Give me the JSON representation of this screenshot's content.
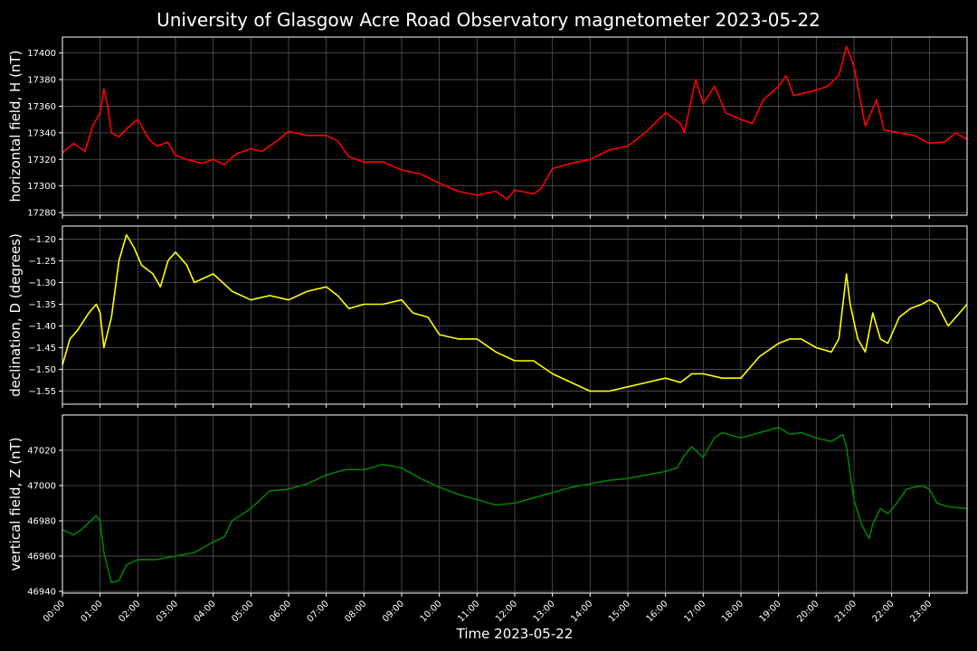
{
  "title": "University of Glasgow Acre Road Observatory magnetometer 2023-05-22",
  "xlabel": "Time 2023-05-22",
  "x_ticks": [
    "00:00",
    "01:00",
    "02:00",
    "03:00",
    "04:00",
    "05:00",
    "06:00",
    "07:00",
    "08:00",
    "09:00",
    "10:00",
    "11:00",
    "12:00",
    "13:00",
    "14:00",
    "15:00",
    "16:00",
    "17:00",
    "18:00",
    "19:00",
    "20:00",
    "21:00",
    "22:00",
    "23:00"
  ],
  "colors": {
    "background": "#000000",
    "grid": "#555555",
    "text": "#ffffff"
  },
  "chart_data": [
    {
      "type": "line",
      "ylabel": "horizontal field, H (nT)",
      "color": "#ff0000",
      "x_range_hours": [
        0,
        24
      ],
      "ylim": [
        17278,
        17412
      ],
      "y_ticks": [
        17280,
        17300,
        17320,
        17340,
        17360,
        17380,
        17400
      ],
      "y_tick_labels": [
        "17280",
        "17300",
        "17320",
        "17340",
        "17360",
        "17380",
        "17400"
      ],
      "grid": true,
      "x_hours": [
        0.0,
        0.3,
        0.6,
        0.8,
        1.0,
        1.1,
        1.2,
        1.3,
        1.5,
        1.7,
        2.0,
        2.3,
        2.5,
        2.8,
        3.0,
        3.3,
        3.7,
        4.0,
        4.3,
        4.6,
        5.0,
        5.3,
        5.7,
        6.0,
        6.5,
        7.0,
        7.3,
        7.6,
        8.0,
        8.5,
        9.0,
        9.5,
        10.0,
        10.5,
        11.0,
        11.5,
        11.8,
        12.0,
        12.5,
        12.7,
        13.0,
        13.5,
        14.0,
        14.5,
        15.0,
        15.5,
        16.0,
        16.4,
        16.5,
        16.8,
        17.0,
        17.3,
        17.6,
        18.0,
        18.3,
        18.6,
        19.0,
        19.2,
        19.4,
        19.7,
        20.0,
        20.3,
        20.6,
        20.8,
        21.0,
        21.3,
        21.6,
        21.8,
        22.2,
        22.6,
        23.0,
        23.4,
        23.7,
        24.0
      ],
      "values": [
        17325,
        17332,
        17326,
        17345,
        17355,
        17373,
        17360,
        17340,
        17337,
        17343,
        17350,
        17335,
        17330,
        17333,
        17323,
        17320,
        17317,
        17320,
        17316,
        17324,
        17328,
        17326,
        17334,
        17341,
        17338,
        17338,
        17334,
        17322,
        17318,
        17318,
        17312,
        17309,
        17302,
        17296,
        17293,
        17296,
        17290,
        17297,
        17294,
        17298,
        17313,
        17317,
        17320,
        17327,
        17330,
        17341,
        17355,
        17347,
        17340,
        17380,
        17362,
        17375,
        17355,
        17350,
        17347,
        17365,
        17375,
        17383,
        17368,
        17370,
        17372,
        17375,
        17383,
        17405,
        17390,
        17345,
        17365,
        17342,
        17340,
        17338,
        17332,
        17333,
        17340,
        17335
      ]
    },
    {
      "type": "line",
      "ylabel": "declination, D (degrees)",
      "color": "#ffff00",
      "x_range_hours": [
        0,
        24
      ],
      "ylim": [
        -1.58,
        -1.17
      ],
      "y_ticks": [
        -1.55,
        -1.5,
        -1.45,
        -1.4,
        -1.35,
        -1.3,
        -1.25,
        -1.2
      ],
      "y_tick_labels": [
        "−1.55",
        "−1.50",
        "−1.45",
        "−1.40",
        "−1.35",
        "−1.30",
        "−1.25",
        "−1.20"
      ],
      "grid": true,
      "x_hours": [
        0.0,
        0.2,
        0.4,
        0.7,
        0.9,
        1.0,
        1.1,
        1.3,
        1.5,
        1.7,
        1.9,
        2.1,
        2.4,
        2.6,
        2.8,
        3.0,
        3.3,
        3.5,
        4.0,
        4.5,
        5.0,
        5.5,
        6.0,
        6.5,
        7.0,
        7.3,
        7.6,
        8.0,
        8.5,
        9.0,
        9.3,
        9.7,
        10.0,
        10.5,
        11.0,
        11.5,
        12.0,
        12.5,
        13.0,
        13.5,
        14.0,
        14.5,
        15.0,
        15.5,
        16.0,
        16.4,
        16.7,
        17.0,
        17.5,
        18.0,
        18.5,
        19.0,
        19.3,
        19.6,
        20.0,
        20.4,
        20.6,
        20.8,
        20.9,
        21.1,
        21.3,
        21.5,
        21.7,
        21.9,
        22.2,
        22.5,
        22.8,
        23.0,
        23.2,
        23.5,
        23.8,
        24.0
      ],
      "values": [
        -1.49,
        -1.43,
        -1.41,
        -1.37,
        -1.35,
        -1.37,
        -1.45,
        -1.38,
        -1.25,
        -1.19,
        -1.22,
        -1.26,
        -1.28,
        -1.31,
        -1.25,
        -1.23,
        -1.26,
        -1.3,
        -1.28,
        -1.32,
        -1.34,
        -1.33,
        -1.34,
        -1.32,
        -1.31,
        -1.33,
        -1.36,
        -1.35,
        -1.35,
        -1.34,
        -1.37,
        -1.38,
        -1.42,
        -1.43,
        -1.43,
        -1.46,
        -1.48,
        -1.48,
        -1.51,
        -1.53,
        -1.55,
        -1.55,
        -1.54,
        -1.53,
        -1.52,
        -1.53,
        -1.51,
        -1.51,
        -1.52,
        -1.52,
        -1.47,
        -1.44,
        -1.43,
        -1.43,
        -1.45,
        -1.46,
        -1.43,
        -1.28,
        -1.35,
        -1.43,
        -1.46,
        -1.37,
        -1.43,
        -1.44,
        -1.38,
        -1.36,
        -1.35,
        -1.34,
        -1.35,
        -1.4,
        -1.37,
        -1.35
      ]
    },
    {
      "type": "line",
      "ylabel": "vertical field, Z (nT)",
      "color": "#008000",
      "x_range_hours": [
        0,
        24
      ],
      "ylim": [
        46939,
        47040
      ],
      "y_ticks": [
        46940,
        46960,
        46980,
        47000,
        47020
      ],
      "y_tick_labels": [
        "46940",
        "46960",
        "46980",
        "47000",
        "47020"
      ],
      "grid": true,
      "x_hours": [
        0.0,
        0.3,
        0.5,
        0.7,
        0.9,
        1.0,
        1.1,
        1.3,
        1.5,
        1.7,
        2.0,
        2.5,
        3.0,
        3.5,
        4.0,
        4.3,
        4.5,
        5.0,
        5.5,
        6.0,
        6.5,
        7.0,
        7.5,
        8.0,
        8.5,
        9.0,
        9.5,
        10.0,
        10.5,
        11.0,
        11.5,
        12.0,
        12.5,
        13.0,
        13.5,
        14.0,
        14.5,
        15.0,
        15.5,
        16.0,
        16.3,
        16.5,
        16.7,
        17.0,
        17.3,
        17.5,
        18.0,
        18.5,
        19.0,
        19.3,
        19.6,
        20.0,
        20.4,
        20.7,
        20.8,
        21.0,
        21.2,
        21.4,
        21.5,
        21.7,
        21.9,
        22.1,
        22.4,
        22.8,
        23.0,
        23.2,
        23.5,
        24.0
      ],
      "values": [
        46975,
        46972,
        46975,
        46979,
        46983,
        46980,
        46962,
        46945,
        46946,
        46955,
        46958,
        46958,
        46960,
        46962,
        46968,
        46971,
        46980,
        46987,
        46997,
        46998,
        47001,
        47006,
        47009,
        47009,
        47012,
        47010,
        47004,
        46999,
        46995,
        46992,
        46989,
        46990,
        46993,
        46996,
        46999,
        47001,
        47003,
        47004,
        47006,
        47008,
        47010,
        47017,
        47022,
        47016,
        47027,
        47030,
        47027,
        47030,
        47033,
        47029,
        47030,
        47027,
        47025,
        47029,
        47022,
        46992,
        46978,
        46970,
        46978,
        46987,
        46984,
        46989,
        46998,
        47000,
        46998,
        46990,
        46988,
        46987
      ]
    }
  ]
}
